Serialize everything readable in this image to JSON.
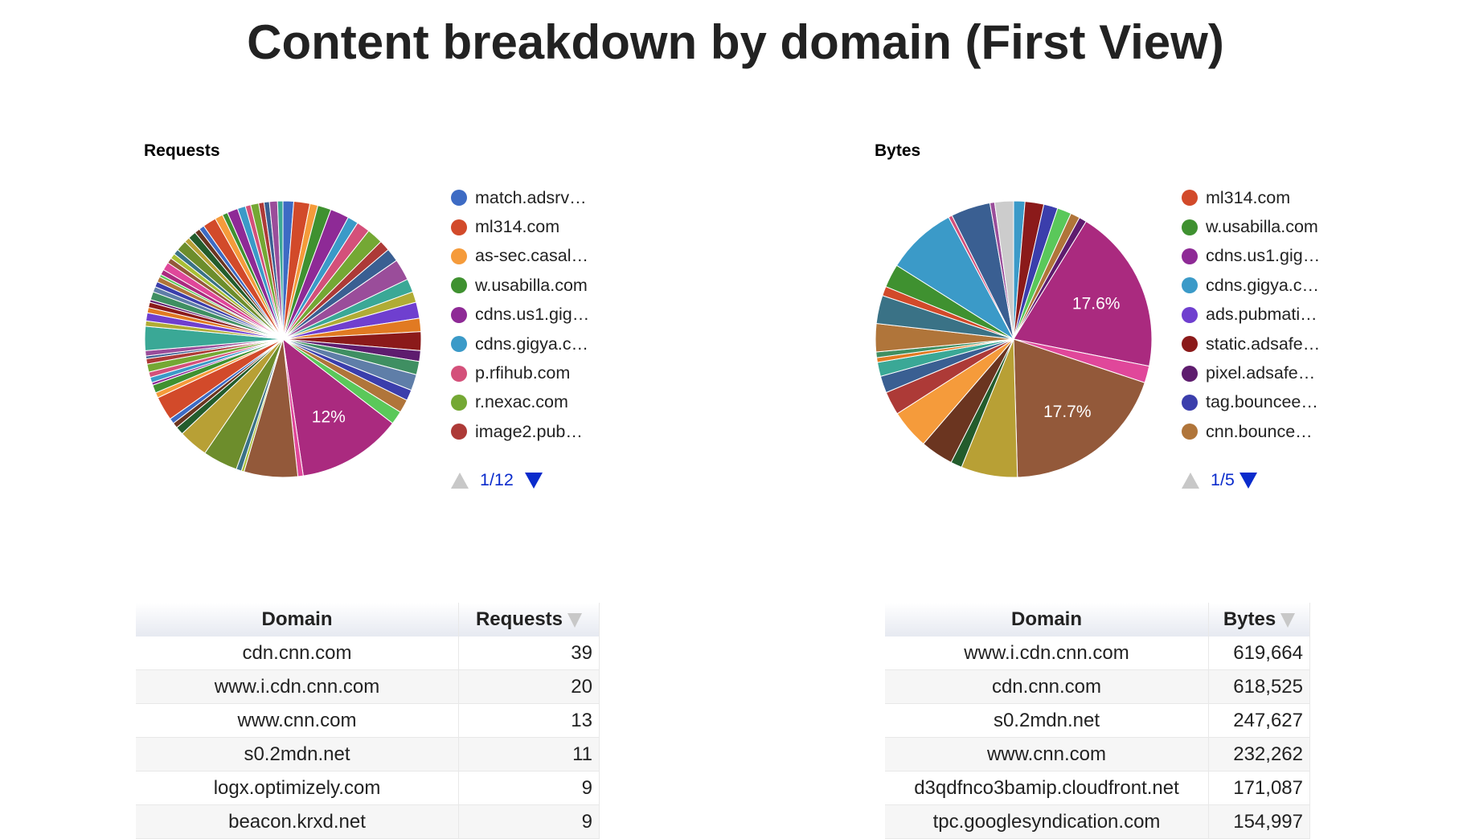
{
  "page_title": "Content breakdown by domain (First View)",
  "palette": [
    "#3d6bc4",
    "#d24a2a",
    "#f59b3b",
    "#3f9130",
    "#8e2a96",
    "#3b9ac8",
    "#d4507a",
    "#74a834",
    "#ad3a37",
    "#3a5f92",
    "#9a4d9a",
    "#3aa896",
    "#b0ac35",
    "#6f3fcf",
    "#e17a22",
    "#8b1a1a",
    "#5e1c6e",
    "#3f8f62",
    "#5f7ea8",
    "#3b3eac",
    "#b0753a",
    "#5ac85a",
    "#aa2a7f",
    "#e0479a",
    "#93593a",
    "#a9bf35",
    "#3a7286",
    "#6d8d2c",
    "#b8a035",
    "#235c2c",
    "#6b3520"
  ],
  "requests_chart": {
    "title": "Requests",
    "slice_label": "12%",
    "legend": [
      "match.adsrv…",
      "ml314.com",
      "as-sec.casal…",
      "w.usabilla.com",
      "cdns.us1.gig…",
      "cdns.gigya.c…",
      "p.rfihub.com",
      "r.nexac.com",
      "image2.pub…"
    ],
    "pager": "1/12"
  },
  "bytes_chart": {
    "title": "Bytes",
    "labels": [
      "17.6%",
      "17.7%"
    ],
    "legend": [
      {
        "label": "ml314.com",
        "color": "#d24a2a"
      },
      {
        "label": "w.usabilla.com",
        "color": "#3f9130"
      },
      {
        "label": "cdns.us1.gig…",
        "color": "#8e2a96"
      },
      {
        "label": "cdns.gigya.c…",
        "color": "#3b9ac8"
      },
      {
        "label": "ads.pubmati…",
        "color": "#6f3fcf"
      },
      {
        "label": "static.adsafe…",
        "color": "#8b1a1a"
      },
      {
        "label": "pixel.adsafe…",
        "color": "#5e1c6e"
      },
      {
        "label": "tag.bouncee…",
        "color": "#3b3eac"
      },
      {
        "label": "cnn.bounce…",
        "color": "#b0753a"
      }
    ],
    "pager": "1/5"
  },
  "chart_data": [
    {
      "type": "pie",
      "title": "Requests",
      "values": [
        4,
        6,
        3,
        5,
        7,
        4,
        5,
        6,
        4,
        5,
        8,
        5,
        4,
        6,
        5,
        7,
        4,
        5,
        6,
        4,
        5,
        5,
        39,
        2,
        20,
        1,
        2,
        13,
        11,
        3,
        2,
        2,
        9,
        2,
        3,
        1,
        2,
        2,
        3,
        2,
        1,
        2,
        9,
        2,
        3,
        2,
        2,
        1,
        3,
        2,
        2,
        2,
        1,
        2,
        3,
        2,
        2,
        2,
        4,
        2,
        3,
        2,
        2,
        5,
        3,
        2,
        4,
        3,
        2,
        3,
        2,
        2,
        3,
        2
      ],
      "labeled_slice": {
        "label": "cdn.cnn.com",
        "value": 39,
        "percent": "12%"
      }
    },
    {
      "type": "pie",
      "title": "Bytes",
      "slices": [
        {
          "pct": 1.2,
          "color": "#3b9ac8"
        },
        {
          "pct": 2.0,
          "color": "#8b1a1a"
        },
        {
          "pct": 1.5,
          "color": "#3b3eac"
        },
        {
          "pct": 1.5,
          "color": "#5ac85a"
        },
        {
          "pct": 1.0,
          "color": "#b0753a"
        },
        {
          "pct": 0.8,
          "color": "#5e1c6e"
        },
        {
          "pct": 17.6,
          "color": "#aa2a7f"
        },
        {
          "pct": 1.8,
          "color": "#e0479a"
        },
        {
          "pct": 17.7,
          "color": "#93593a"
        },
        {
          "pct": 6.0,
          "color": "#b8a035"
        },
        {
          "pct": 1.2,
          "color": "#235c2c"
        },
        {
          "pct": 3.5,
          "color": "#6b3520"
        },
        {
          "pct": 4.2,
          "color": "#f59b3b"
        },
        {
          "pct": 2.5,
          "color": "#ad3a37"
        },
        {
          "pct": 1.8,
          "color": "#3a5f92"
        },
        {
          "pct": 1.5,
          "color": "#3aa896"
        },
        {
          "pct": 0.5,
          "color": "#e17a22"
        },
        {
          "pct": 0.6,
          "color": "#3f8f62"
        },
        {
          "pct": 3.0,
          "color": "#b0753a"
        },
        {
          "pct": 3.0,
          "color": "#3a7286"
        },
        {
          "pct": 1.0,
          "color": "#d24a2a"
        },
        {
          "pct": 2.5,
          "color": "#3f9130"
        },
        {
          "pct": 7.5,
          "color": "#3b9ac8"
        },
        {
          "pct": 0.4,
          "color": "#d4507a"
        },
        {
          "pct": 4.2,
          "color": "#3a5f92"
        },
        {
          "pct": 0.5,
          "color": "#9a4d9a"
        },
        {
          "pct": 2.0,
          "color": "#cccccc"
        }
      ]
    }
  ],
  "requests_table": {
    "headers": [
      "Domain",
      "Requests"
    ],
    "rows": [
      [
        "cdn.cnn.com",
        "39"
      ],
      [
        "www.i.cdn.cnn.com",
        "20"
      ],
      [
        "www.cnn.com",
        "13"
      ],
      [
        "s0.2mdn.net",
        "11"
      ],
      [
        "logx.optimizely.com",
        "9"
      ],
      [
        "beacon.krxd.net",
        "9"
      ]
    ]
  },
  "bytes_table": {
    "headers": [
      "Domain",
      "Bytes"
    ],
    "rows": [
      [
        "www.i.cdn.cnn.com",
        "619,664"
      ],
      [
        "cdn.cnn.com",
        "618,525"
      ],
      [
        "s0.2mdn.net",
        "247,627"
      ],
      [
        "www.cnn.com",
        "232,262"
      ],
      [
        "d3qdfnco3bamip.cloudfront.net",
        "171,087"
      ],
      [
        "tpc.googlesyndication.com",
        "154,997"
      ]
    ]
  }
}
